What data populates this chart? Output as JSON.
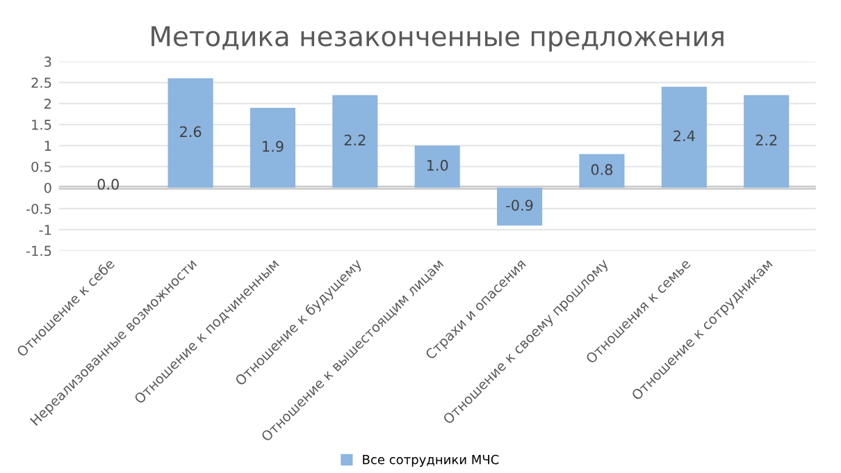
{
  "chart_data": {
    "type": "bar",
    "title": "Методика незаконченные предложения",
    "categories": [
      "Отношение к себе",
      "Нереализованные возможности",
      "Отношение к подчиненным",
      "Отношение к будущему",
      "Отношение к вышестоящим лицам",
      "Страхи и опасения",
      "Отношение к своему прошлому",
      "Отношения к семье",
      "Отношение к сотрудникам"
    ],
    "series": [
      {
        "name": "Все сотрудники МЧС",
        "color": "#8cb5e0",
        "values": [
          0.0,
          2.6,
          1.9,
          2.2,
          1.0,
          -0.9,
          0.8,
          2.4,
          2.2
        ],
        "value_labels": [
          "0.0",
          "2.6",
          "1.9",
          "2.2",
          "1.0",
          "-0.9",
          "0.8",
          "2.4",
          "2.2"
        ]
      }
    ],
    "ylim": [
      -1.5,
      3
    ],
    "yticks": [
      -1.5,
      -1,
      -0.5,
      0,
      0.5,
      1,
      1.5,
      2,
      2.5,
      3
    ],
    "grid": "y",
    "legend": "bottom"
  }
}
